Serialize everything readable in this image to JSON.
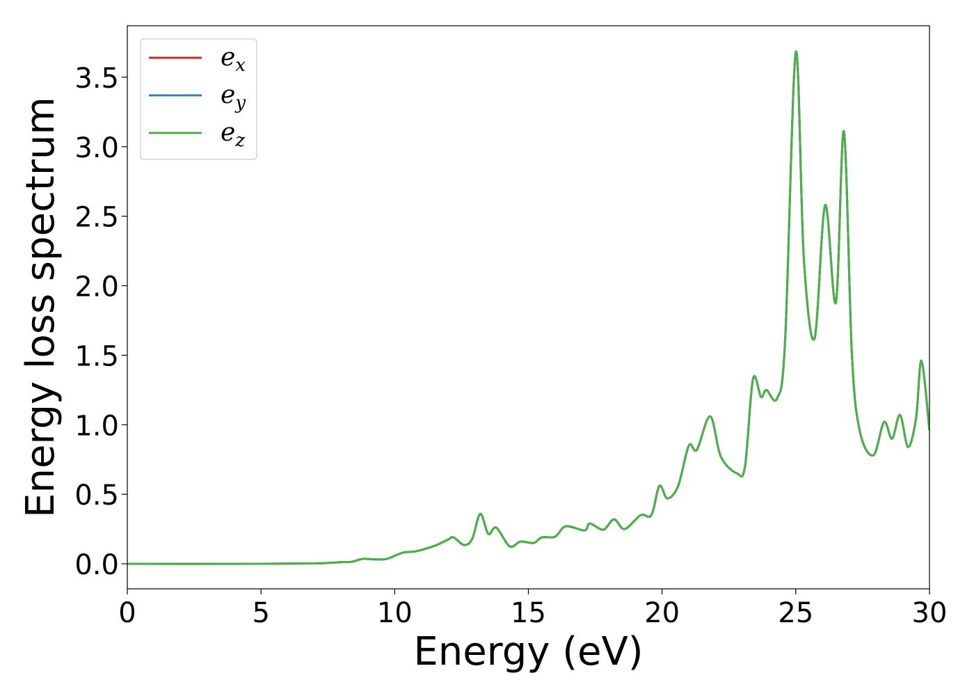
{
  "chart_data": {
    "type": "line",
    "title": "",
    "xlabel": "Energy (eV)",
    "ylabel": "Energy loss spectrum",
    "xlim": [
      0,
      30
    ],
    "ylim": [
      -0.18,
      3.87
    ],
    "x_ticks": [
      0,
      5,
      10,
      15,
      20,
      25,
      30
    ],
    "x_tick_labels": [
      "0",
      "5",
      "10",
      "15",
      "20",
      "25",
      "30"
    ],
    "y_ticks": [
      0.0,
      0.5,
      1.0,
      1.5,
      2.0,
      2.5,
      3.0,
      3.5
    ],
    "y_tick_labels": [
      "0.0",
      "0.5",
      "1.0",
      "1.5",
      "2.0",
      "2.5",
      "3.0",
      "3.5"
    ],
    "grid": false,
    "legend_placement": "top-left",
    "series": [
      {
        "name": "e_x",
        "label_base": "e",
        "label_sub": "x",
        "color": "#d62728",
        "points": [
          [
            0,
            0
          ],
          [
            5,
            0
          ],
          [
            7,
            0.003
          ],
          [
            7.5,
            0.006
          ],
          [
            8,
            0.012
          ],
          [
            8.4,
            0.015
          ],
          [
            8.8,
            0.035
          ],
          [
            9.2,
            0.032
          ],
          [
            9.7,
            0.035
          ],
          [
            10.3,
            0.08
          ],
          [
            10.8,
            0.09
          ],
          [
            11.5,
            0.13
          ],
          [
            12.0,
            0.175
          ],
          [
            12.2,
            0.19
          ],
          [
            12.6,
            0.135
          ],
          [
            12.9,
            0.18
          ],
          [
            13.2,
            0.36
          ],
          [
            13.5,
            0.215
          ],
          [
            13.8,
            0.26
          ],
          [
            14.3,
            0.125
          ],
          [
            14.7,
            0.16
          ],
          [
            15.2,
            0.15
          ],
          [
            15.5,
            0.19
          ],
          [
            16.0,
            0.195
          ],
          [
            16.4,
            0.27
          ],
          [
            17.1,
            0.24
          ],
          [
            17.3,
            0.29
          ],
          [
            17.8,
            0.245
          ],
          [
            18.2,
            0.32
          ],
          [
            18.6,
            0.25
          ],
          [
            19.2,
            0.35
          ],
          [
            19.6,
            0.35
          ],
          [
            19.9,
            0.56
          ],
          [
            20.2,
            0.47
          ],
          [
            20.6,
            0.56
          ],
          [
            21.0,
            0.85
          ],
          [
            21.3,
            0.82
          ],
          [
            21.8,
            1.06
          ],
          [
            22.2,
            0.77
          ],
          [
            22.8,
            0.65
          ],
          [
            23.1,
            0.7
          ],
          [
            23.4,
            1.33
          ],
          [
            23.7,
            1.2
          ],
          [
            23.9,
            1.25
          ],
          [
            24.3,
            1.19
          ],
          [
            24.6,
            1.6
          ],
          [
            25.0,
            3.68
          ],
          [
            25.3,
            2.2
          ],
          [
            25.7,
            1.62
          ],
          [
            26.1,
            2.58
          ],
          [
            26.5,
            1.88
          ],
          [
            26.8,
            3.11
          ],
          [
            27.1,
            1.5
          ],
          [
            27.4,
            0.95
          ],
          [
            27.9,
            0.78
          ],
          [
            28.3,
            1.02
          ],
          [
            28.6,
            0.9
          ],
          [
            28.9,
            1.07
          ],
          [
            29.2,
            0.84
          ],
          [
            29.5,
            1.05
          ],
          [
            29.7,
            1.46
          ],
          [
            30.0,
            0.96
          ]
        ]
      },
      {
        "name": "e_y",
        "label_base": "e",
        "label_sub": "y",
        "color": "#377eb8",
        "points": [
          [
            0,
            0
          ],
          [
            5,
            0
          ],
          [
            7,
            0.003
          ],
          [
            7.5,
            0.006
          ],
          [
            8,
            0.012
          ],
          [
            8.4,
            0.015
          ],
          [
            8.8,
            0.035
          ],
          [
            9.2,
            0.032
          ],
          [
            9.7,
            0.035
          ],
          [
            10.3,
            0.08
          ],
          [
            10.8,
            0.09
          ],
          [
            11.5,
            0.13
          ],
          [
            12.0,
            0.175
          ],
          [
            12.2,
            0.19
          ],
          [
            12.6,
            0.135
          ],
          [
            12.9,
            0.18
          ],
          [
            13.2,
            0.36
          ],
          [
            13.5,
            0.215
          ],
          [
            13.8,
            0.26
          ],
          [
            14.3,
            0.125
          ],
          [
            14.7,
            0.16
          ],
          [
            15.2,
            0.15
          ],
          [
            15.5,
            0.19
          ],
          [
            16.0,
            0.195
          ],
          [
            16.4,
            0.27
          ],
          [
            17.1,
            0.24
          ],
          [
            17.3,
            0.29
          ],
          [
            17.8,
            0.245
          ],
          [
            18.2,
            0.32
          ],
          [
            18.6,
            0.25
          ],
          [
            19.2,
            0.35
          ],
          [
            19.6,
            0.35
          ],
          [
            19.9,
            0.56
          ],
          [
            20.2,
            0.47
          ],
          [
            20.6,
            0.56
          ],
          [
            21.0,
            0.85
          ],
          [
            21.3,
            0.82
          ],
          [
            21.8,
            1.06
          ],
          [
            22.2,
            0.77
          ],
          [
            22.8,
            0.65
          ],
          [
            23.1,
            0.7
          ],
          [
            23.4,
            1.33
          ],
          [
            23.7,
            1.2
          ],
          [
            23.9,
            1.25
          ],
          [
            24.3,
            1.19
          ],
          [
            24.6,
            1.6
          ],
          [
            25.0,
            3.68
          ],
          [
            25.3,
            2.2
          ],
          [
            25.7,
            1.62
          ],
          [
            26.1,
            2.58
          ],
          [
            26.5,
            1.88
          ],
          [
            26.8,
            3.11
          ],
          [
            27.1,
            1.5
          ],
          [
            27.4,
            0.95
          ],
          [
            27.9,
            0.78
          ],
          [
            28.3,
            1.02
          ],
          [
            28.6,
            0.9
          ],
          [
            28.9,
            1.07
          ],
          [
            29.2,
            0.84
          ],
          [
            29.5,
            1.05
          ],
          [
            29.7,
            1.46
          ],
          [
            30.0,
            0.96
          ]
        ]
      },
      {
        "name": "e_z",
        "label_base": "e",
        "label_sub": "z",
        "color": "#4daf4a",
        "points": [
          [
            0,
            0
          ],
          [
            5,
            0
          ],
          [
            7,
            0.003
          ],
          [
            7.5,
            0.006
          ],
          [
            8,
            0.012
          ],
          [
            8.4,
            0.015
          ],
          [
            8.8,
            0.035
          ],
          [
            9.2,
            0.032
          ],
          [
            9.7,
            0.035
          ],
          [
            10.3,
            0.08
          ],
          [
            10.8,
            0.09
          ],
          [
            11.5,
            0.13
          ],
          [
            12.0,
            0.175
          ],
          [
            12.2,
            0.19
          ],
          [
            12.6,
            0.135
          ],
          [
            12.9,
            0.18
          ],
          [
            13.2,
            0.36
          ],
          [
            13.5,
            0.215
          ],
          [
            13.8,
            0.26
          ],
          [
            14.3,
            0.125
          ],
          [
            14.7,
            0.16
          ],
          [
            15.2,
            0.15
          ],
          [
            15.5,
            0.19
          ],
          [
            16.0,
            0.195
          ],
          [
            16.4,
            0.27
          ],
          [
            17.1,
            0.24
          ],
          [
            17.3,
            0.29
          ],
          [
            17.8,
            0.245
          ],
          [
            18.2,
            0.32
          ],
          [
            18.6,
            0.25
          ],
          [
            19.2,
            0.35
          ],
          [
            19.6,
            0.35
          ],
          [
            19.9,
            0.56
          ],
          [
            20.2,
            0.47
          ],
          [
            20.6,
            0.56
          ],
          [
            21.0,
            0.85
          ],
          [
            21.3,
            0.82
          ],
          [
            21.8,
            1.06
          ],
          [
            22.2,
            0.77
          ],
          [
            22.8,
            0.65
          ],
          [
            23.1,
            0.7
          ],
          [
            23.4,
            1.33
          ],
          [
            23.7,
            1.2
          ],
          [
            23.9,
            1.25
          ],
          [
            24.3,
            1.19
          ],
          [
            24.6,
            1.6
          ],
          [
            25.0,
            3.68
          ],
          [
            25.3,
            2.2
          ],
          [
            25.7,
            1.62
          ],
          [
            26.1,
            2.58
          ],
          [
            26.5,
            1.88
          ],
          [
            26.8,
            3.11
          ],
          [
            27.1,
            1.5
          ],
          [
            27.4,
            0.95
          ],
          [
            27.9,
            0.78
          ],
          [
            28.3,
            1.02
          ],
          [
            28.6,
            0.9
          ],
          [
            28.9,
            1.07
          ],
          [
            29.2,
            0.84
          ],
          [
            29.5,
            1.05
          ],
          [
            29.7,
            1.46
          ],
          [
            30.0,
            0.96
          ]
        ]
      }
    ]
  }
}
